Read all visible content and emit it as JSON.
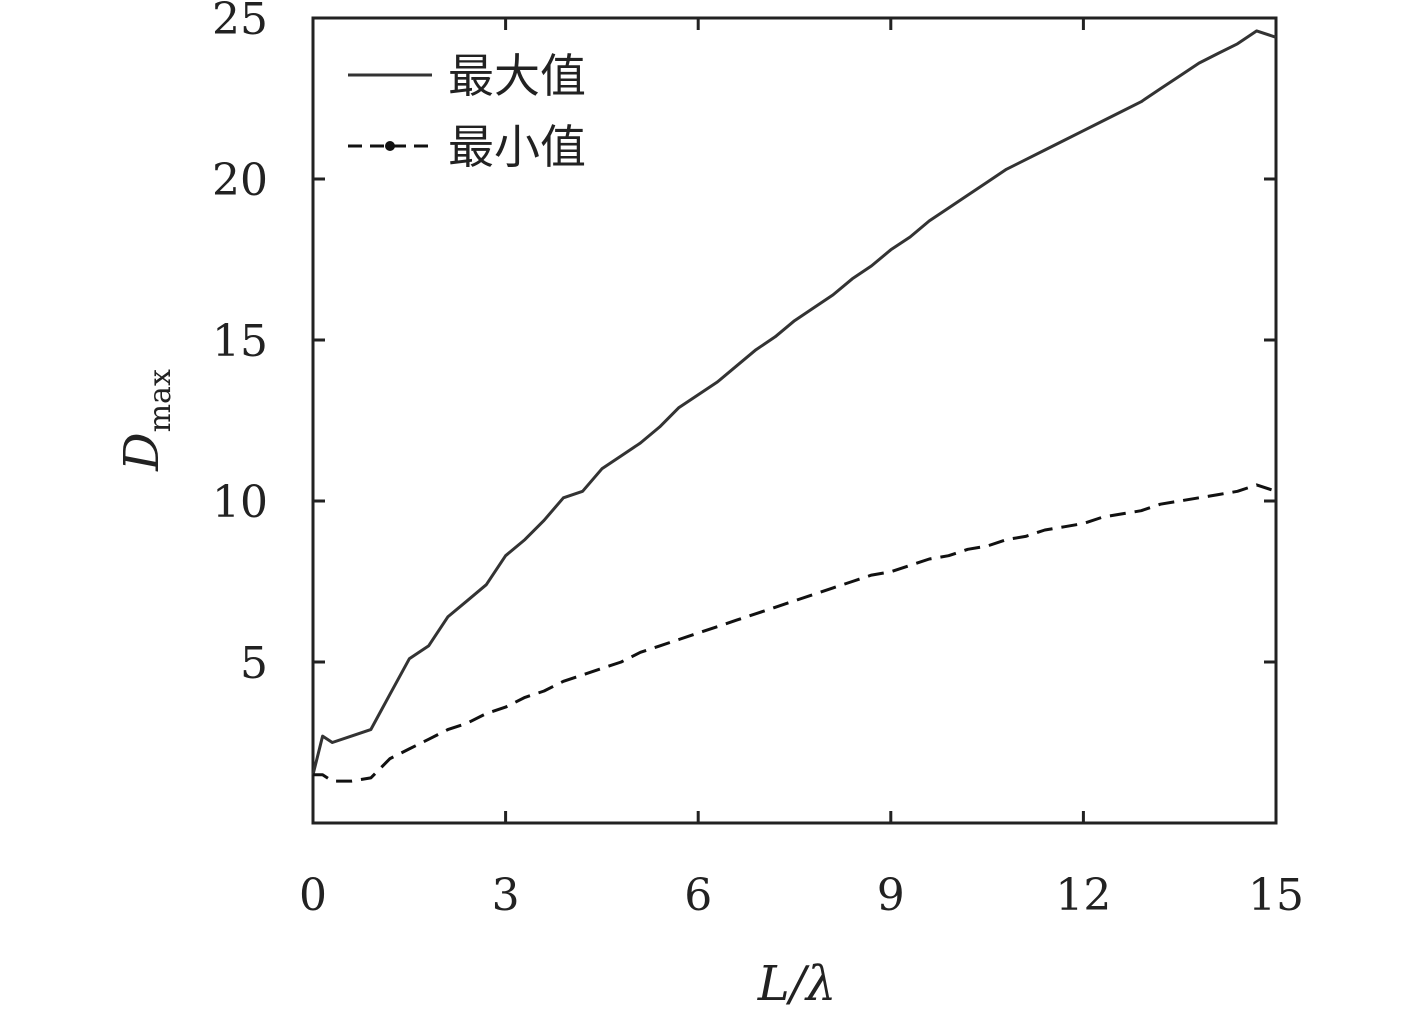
{
  "chart_data": {
    "type": "line",
    "title": "",
    "xlabel": "L/λ",
    "ylabel": {
      "main": "D",
      "sub": "max"
    },
    "xlim": [
      0,
      15
    ],
    "ylim": [
      0,
      25
    ],
    "x_ticks": [
      "0",
      "3",
      "6",
      "9",
      "12",
      "15"
    ],
    "x_tick_values": [
      0,
      3,
      6,
      9,
      12,
      15
    ],
    "y_ticks": [
      "5",
      "10",
      "15",
      "20",
      "25"
    ],
    "y_tick_values": [
      5,
      10,
      15,
      20,
      25
    ],
    "legend_position": "top-left",
    "grid": false,
    "series": [
      {
        "name": "最大值",
        "style": "solid",
        "color": "#333333",
        "x": [
          0,
          0.15,
          0.3,
          0.6,
          0.9,
          1.2,
          1.5,
          1.8,
          2.1,
          2.4,
          2.7,
          3.0,
          3.3,
          3.6,
          3.9,
          4.2,
          4.5,
          4.8,
          5.1,
          5.4,
          5.7,
          6.0,
          6.3,
          6.6,
          6.9,
          7.2,
          7.5,
          7.8,
          8.1,
          8.4,
          8.7,
          9.0,
          9.3,
          9.6,
          9.9,
          10.2,
          10.5,
          10.8,
          11.1,
          11.4,
          11.7,
          12.0,
          12.3,
          12.6,
          12.9,
          13.2,
          13.5,
          13.8,
          14.1,
          14.4,
          14.7,
          15.0
        ],
        "y": [
          1.5,
          2.7,
          2.5,
          2.7,
          2.9,
          4.0,
          5.1,
          5.5,
          6.4,
          6.9,
          7.4,
          8.3,
          8.8,
          9.4,
          10.1,
          10.3,
          11.0,
          11.4,
          11.8,
          12.3,
          12.9,
          13.3,
          13.7,
          14.2,
          14.7,
          15.1,
          15.6,
          16.0,
          16.4,
          16.9,
          17.3,
          17.8,
          18.2,
          18.7,
          19.1,
          19.5,
          19.9,
          20.3,
          20.6,
          20.9,
          21.2,
          21.5,
          21.8,
          22.1,
          22.4,
          22.8,
          23.2,
          23.6,
          23.9,
          24.2,
          24.6,
          24.4
        ]
      },
      {
        "name": "最小值",
        "style": "dashed",
        "color": "#111111",
        "x": [
          0,
          0.15,
          0.3,
          0.6,
          0.9,
          1.2,
          1.5,
          1.8,
          2.1,
          2.4,
          2.7,
          3.0,
          3.3,
          3.6,
          3.9,
          4.2,
          4.5,
          4.8,
          5.1,
          5.4,
          5.7,
          6.0,
          6.3,
          6.6,
          6.9,
          7.2,
          7.5,
          7.8,
          8.1,
          8.4,
          8.7,
          9.0,
          9.3,
          9.6,
          9.9,
          10.2,
          10.5,
          10.8,
          11.1,
          11.4,
          11.7,
          12.0,
          12.3,
          12.6,
          12.9,
          13.2,
          13.5,
          13.8,
          14.1,
          14.4,
          14.7,
          15.0
        ],
        "y": [
          1.5,
          1.5,
          1.3,
          1.3,
          1.4,
          2.0,
          2.3,
          2.6,
          2.9,
          3.1,
          3.4,
          3.6,
          3.9,
          4.1,
          4.4,
          4.6,
          4.8,
          5.0,
          5.3,
          5.5,
          5.7,
          5.9,
          6.1,
          6.3,
          6.5,
          6.7,
          6.9,
          7.1,
          7.3,
          7.5,
          7.7,
          7.8,
          8.0,
          8.2,
          8.3,
          8.5,
          8.6,
          8.8,
          8.9,
          9.1,
          9.2,
          9.3,
          9.5,
          9.6,
          9.7,
          9.9,
          10.0,
          10.1,
          10.2,
          10.3,
          10.5,
          10.3
        ]
      }
    ]
  }
}
